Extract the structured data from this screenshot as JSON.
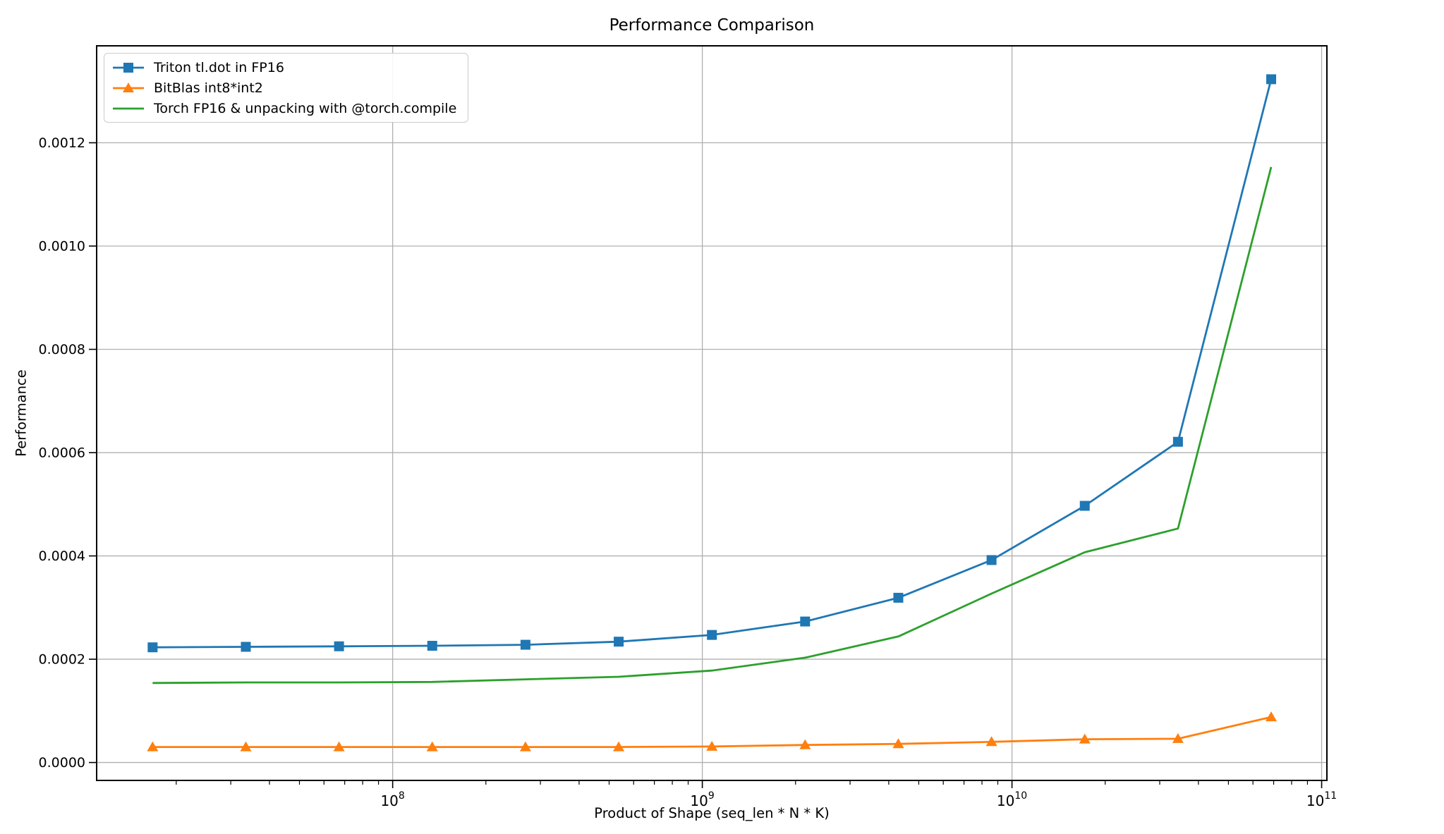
{
  "chart_data": {
    "type": "line",
    "title": "Performance Comparison",
    "xlabel": "Product of Shape (seq_len * N * K)",
    "ylabel": "Performance",
    "xscale": "log",
    "grid": true,
    "legend_position": "upper left",
    "x": [
      16777216,
      33554432,
      67108864,
      134217728,
      268435456,
      536870912,
      1073741824,
      2147483648,
      4294967296,
      8589934592,
      17179869184,
      34359738368,
      68719476736
    ],
    "series": [
      {
        "name": "Triton tl.dot in FP16",
        "color": "#1f77b4",
        "marker": "square",
        "values": [
          0.000223,
          0.000224,
          0.000225,
          0.000226,
          0.000228,
          0.000234,
          0.000247,
          0.000273,
          0.000319,
          0.000392,
          0.000497,
          0.000621,
          0.001323
        ]
      },
      {
        "name": "BitBlas int8*int2",
        "color": "#ff7f0e",
        "marker": "triangle",
        "values": [
          3e-05,
          3e-05,
          3e-05,
          3e-05,
          3e-05,
          3e-05,
          3.1e-05,
          3.4e-05,
          3.6e-05,
          4e-05,
          4.5e-05,
          4.6e-05,
          8.8e-05
        ]
      },
      {
        "name": "Torch FP16 & unpacking with @torch.compile",
        "color": "#2ca02c",
        "marker": "none",
        "values": [
          0.000154,
          0.000155,
          0.000155,
          0.000156,
          0.000161,
          0.000166,
          0.000178,
          0.000203,
          0.000244,
          0.000327,
          0.000407,
          0.000453,
          0.001153
        ]
      }
    ],
    "x_ticks_exponents": [
      8,
      9,
      10,
      11
    ],
    "y_ticks": [
      "0.0000",
      "0.0002",
      "0.0004",
      "0.0006",
      "0.0008",
      "0.0010",
      "0.0012"
    ],
    "y_tick_values": [
      0,
      0.0002,
      0.0004,
      0.0006,
      0.0008,
      0.001,
      0.0012
    ],
    "xlim_log10": [
      7.044,
      11.017
    ],
    "ylim": [
      -3.47e-05,
      0.0013877
    ],
    "grid_color": "#b0b0b0",
    "spine_color": "#000000",
    "legend_border_color": "#cccccc"
  }
}
